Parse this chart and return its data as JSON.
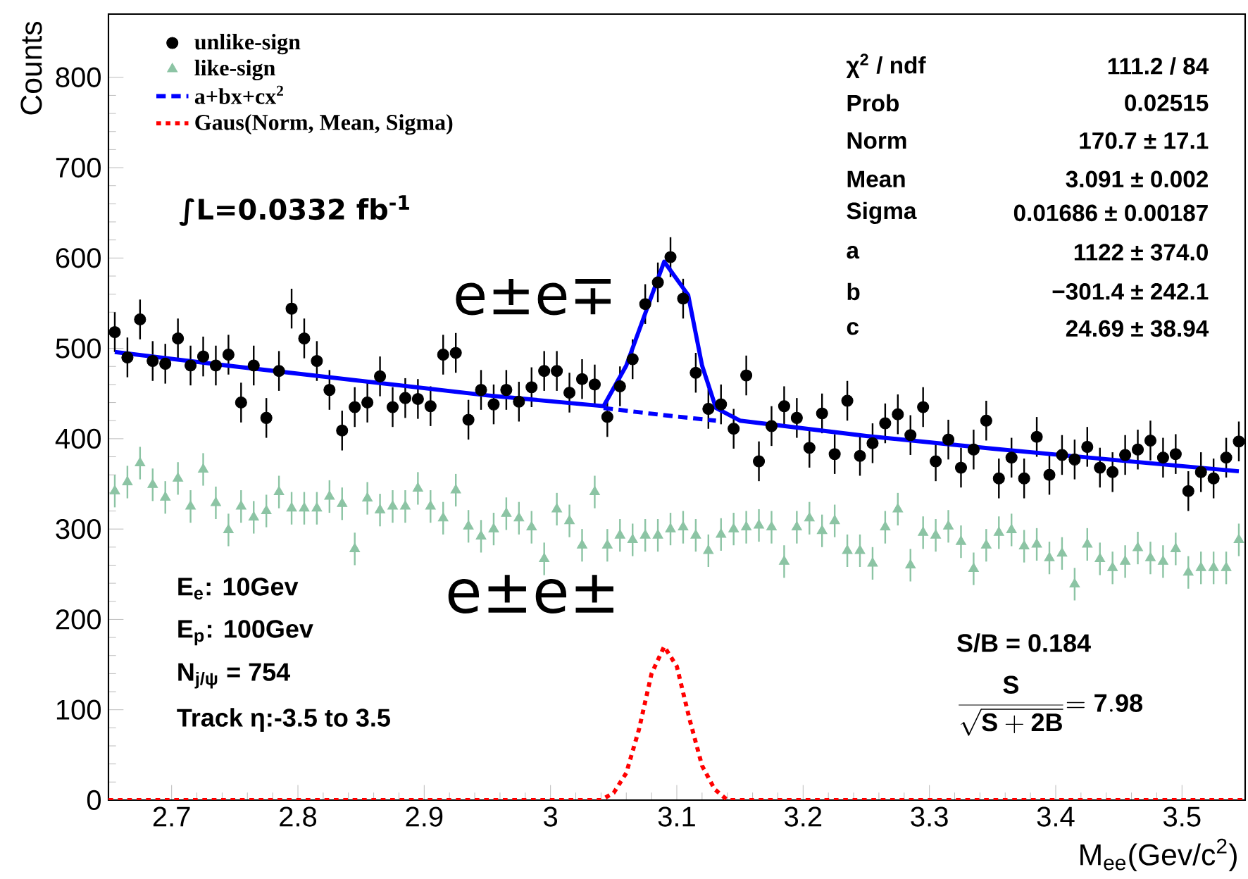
{
  "chart_data": {
    "type": "scatter",
    "xlabel": "M$_{ee}$(Gev/c$^{2}$)",
    "ylabel": "Counts",
    "xlim": [
      2.65,
      3.55
    ],
    "ylim": [
      0,
      870
    ],
    "xticks": [
      2.7,
      2.8,
      2.9,
      3,
      3.1,
      3.2,
      3.3,
      3.4,
      3.5
    ],
    "yticks": [
      0,
      100,
      200,
      300,
      400,
      500,
      600,
      700,
      800
    ],
    "legend": "top left",
    "x": [
      2.655,
      2.665,
      2.675,
      2.685,
      2.695,
      2.705,
      2.715,
      2.725,
      2.735,
      2.745,
      2.755,
      2.765,
      2.775,
      2.785,
      2.795,
      2.805,
      2.815,
      2.825,
      2.835,
      2.845,
      2.855,
      2.865,
      2.875,
      2.885,
      2.895,
      2.905,
      2.915,
      2.925,
      2.935,
      2.945,
      2.955,
      2.965,
      2.975,
      2.985,
      2.995,
      3.005,
      3.015,
      3.025,
      3.035,
      3.045,
      3.055,
      3.065,
      3.075,
      3.085,
      3.095,
      3.105,
      3.115,
      3.125,
      3.135,
      3.145,
      3.155,
      3.165,
      3.175,
      3.185,
      3.195,
      3.205,
      3.215,
      3.225,
      3.235,
      3.245,
      3.255,
      3.265,
      3.275,
      3.285,
      3.295,
      3.305,
      3.315,
      3.325,
      3.335,
      3.345,
      3.355,
      3.365,
      3.375,
      3.385,
      3.395,
      3.405,
      3.415,
      3.425,
      3.435,
      3.445,
      3.455,
      3.465,
      3.475,
      3.485,
      3.495,
      3.505,
      3.515,
      3.525,
      3.535,
      3.545
    ],
    "series": [
      {
        "name": "unlike-sign",
        "marker": "circle",
        "color": "#000000",
        "values": [
          518,
          490,
          532,
          486,
          483,
          511,
          481,
          491,
          481,
          493,
          440,
          481,
          423,
          475,
          544,
          511,
          486,
          454,
          409,
          435,
          440,
          469,
          435,
          445,
          444,
          436,
          493,
          495,
          421,
          454,
          438,
          454,
          441,
          457,
          475,
          475,
          451,
          466,
          460,
          424,
          458,
          488,
          549,
          573,
          601,
          555,
          473,
          433,
          438,
          411,
          470,
          375,
          414,
          436,
          423,
          390,
          428,
          383,
          442,
          381,
          395,
          417,
          427,
          404,
          435,
          375,
          399,
          368,
          388,
          420,
          356,
          379,
          356,
          402,
          360,
          382,
          377,
          391,
          368,
          363,
          382,
          388,
          398,
          379,
          383,
          342,
          363,
          356,
          379,
          397
        ],
        "errors": [
          22,
          22,
          22,
          22,
          22,
          22,
          22,
          22,
          22,
          22,
          22,
          22,
          22,
          22,
          22,
          22,
          22,
          22,
          22,
          22,
          22,
          22,
          22,
          22,
          22,
          22,
          22,
          22,
          22,
          22,
          22,
          22,
          22,
          22,
          22,
          22,
          22,
          22,
          22,
          22,
          22,
          22,
          22,
          22,
          22,
          22,
          22,
          22,
          22,
          22,
          22,
          22,
          22,
          22,
          22,
          22,
          22,
          22,
          22,
          22,
          22,
          22,
          22,
          22,
          22,
          22,
          22,
          22,
          22,
          22,
          22,
          22,
          22,
          22,
          22,
          22,
          22,
          22,
          22,
          22,
          22,
          22,
          22,
          22,
          22,
          22,
          22,
          22,
          22,
          22
        ]
      },
      {
        "name": "like-sign",
        "marker": "triangle",
        "color": "#8cc4a4",
        "values": [
          342,
          352,
          373,
          349,
          335,
          356,
          325,
          366,
          329,
          299,
          325,
          313,
          320,
          341,
          323,
          323,
          323,
          336,
          328,
          278,
          334,
          321,
          325,
          325,
          345,
          325,
          312,
          343,
          303,
          292,
          300,
          317,
          312,
          302,
          267,
          322,
          309,
          282,
          341,
          282,
          293,
          288,
          293,
          293,
          300,
          302,
          293,
          276,
          294,
          300,
          302,
          304,
          302,
          264,
          302,
          312,
          298,
          309,
          276,
          276,
          262,
          302,
          322,
          260,
          296,
          293,
          303,
          286,
          256,
          282,
          296,
          299,
          281,
          283,
          268,
          273,
          239,
          283,
          267,
          257,
          264,
          279,
          268,
          264,
          278,
          252,
          257,
          257,
          257,
          288
        ],
        "errors": [
          18,
          18,
          18,
          18,
          18,
          18,
          18,
          18,
          18,
          18,
          18,
          18,
          18,
          18,
          18,
          18,
          18,
          18,
          18,
          18,
          18,
          18,
          18,
          18,
          18,
          18,
          18,
          18,
          18,
          18,
          18,
          18,
          18,
          18,
          18,
          18,
          18,
          18,
          18,
          18,
          18,
          18,
          18,
          18,
          18,
          18,
          18,
          18,
          18,
          18,
          18,
          18,
          18,
          18,
          18,
          18,
          18,
          18,
          18,
          18,
          18,
          18,
          18,
          18,
          18,
          18,
          18,
          18,
          18,
          18,
          18,
          18,
          18,
          18,
          18,
          18,
          18,
          18,
          18,
          18,
          18,
          18,
          18,
          18,
          18,
          18,
          18,
          18,
          18,
          18
        ]
      },
      {
        "name": "a+bx+cx$^{2}$",
        "type": "line",
        "marker": "none",
        "line_style": "dashed",
        "color": "#0000ff",
        "x": [
          3.042,
          3.09,
          3.131
        ],
        "values": [
          434,
          426,
          420
        ]
      },
      {
        "name": "Gaus(Norm, Mean, Sigma)",
        "type": "line",
        "marker": "none",
        "line_style": "dotted",
        "color": "#ff0000",
        "x": [
          2.65,
          3.04,
          3.05,
          3.06,
          3.07,
          3.08,
          3.09,
          3.1,
          3.11,
          3.12,
          3.13,
          3.14,
          3.55
        ],
        "values": [
          0,
          0,
          8,
          30,
          78,
          140,
          170,
          148,
          90,
          38,
          12,
          0,
          0
        ]
      },
      {
        "type": "line",
        "marker": "none",
        "line_style": "solid",
        "color": "#0000ff",
        "x": [
          2.655,
          2.75,
          2.85,
          2.95,
          3.042,
          3.06,
          3.079,
          3.09,
          3.109,
          3.12,
          3.131,
          3.15,
          3.25,
          3.35,
          3.45,
          3.545
        ],
        "values": [
          496,
          480,
          464,
          448,
          436,
          481,
          554,
          596,
          559,
          481,
          434,
          420,
          403,
          389,
          376,
          364
        ]
      }
    ],
    "annotations": [
      "χ$^{2}$ / ndf",
      "111.2 / 84",
      "Prob",
      "0.02515",
      "Norm",
      "170.7 ± 17.1",
      "Mean",
      "3.091 ± 0.002",
      "Sigma",
      "0.01686 ± 0.00187",
      "a",
      "1122 ± 374.0",
      "b",
      "−301.4 ± 242.1",
      "c",
      "24.69 ± 38.94",
      "∫L=0.0332 fb$^{-1}$",
      "e±e∓",
      "e±e±",
      "E$_{e}$: 10Gev",
      "E$_{p}$: 100Gev",
      "N$_{j/ψ}$ = 754",
      "Track  η:-3.5 to 3.5",
      "S/B = 0.184",
      "\\frac{\\mathbf{S}}{\\sqrt{\\mathbf{S+2B}}}\\mathbf{ = 7.98}"
    ]
  }
}
